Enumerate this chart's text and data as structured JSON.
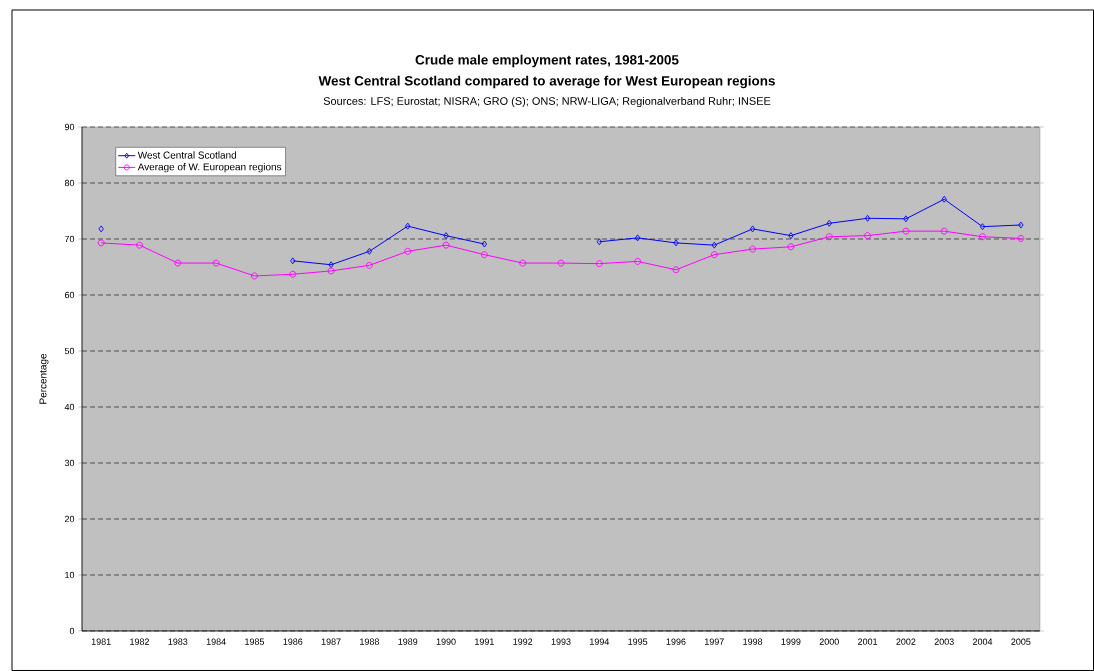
{
  "chart_data": {
    "type": "line",
    "title": "Crude male employment rates, 1981-2005",
    "subtitle": "West Central Scotland compared to average for West European regions",
    "annotations": [
      "Sources: LFS; Eurostat; NISRA; GRO (S); ONS; NRW-LIGA; Regionalverband Ruhr; INSEE"
    ],
    "ylabel": "Percentage",
    "categories": [
      "1981",
      "1982",
      "1983",
      "1984",
      "1985",
      "1986",
      "1987",
      "1988",
      "1989",
      "1990",
      "1991",
      "1992",
      "1993",
      "1994",
      "1995",
      "1996",
      "1997",
      "1998",
      "1999",
      "2000",
      "2001",
      "2002",
      "2003",
      "2004",
      "2005"
    ],
    "series": [
      {
        "name": "West Central Scotland",
        "color": "#0000ff",
        "marker": "diamond",
        "values": [
          71.8,
          null,
          null,
          null,
          null,
          66.1,
          65.4,
          67.8,
          72.3,
          70.6,
          69.1,
          null,
          null,
          69.5,
          70.2,
          69.3,
          68.9,
          71.8,
          70.6,
          72.8,
          73.7,
          73.6,
          77.1,
          72.2,
          72.5
        ]
      },
      {
        "name": "Average of W. European regions",
        "color": "#ff00ff",
        "marker": "circle",
        "values": [
          69.3,
          68.9,
          65.7,
          65.7,
          63.4,
          63.7,
          64.3,
          65.3,
          67.8,
          68.9,
          67.2,
          65.7,
          65.7,
          65.6,
          66.0,
          64.5,
          67.2,
          68.2,
          68.6,
          70.4,
          70.6,
          71.4,
          71.4,
          70.4,
          70.1
        ]
      }
    ],
    "ylim": [
      0,
      90
    ],
    "yticks": [
      0,
      10,
      20,
      30,
      40,
      50,
      60,
      70,
      80,
      90
    ],
    "grid": "y",
    "legend": "top left"
  }
}
